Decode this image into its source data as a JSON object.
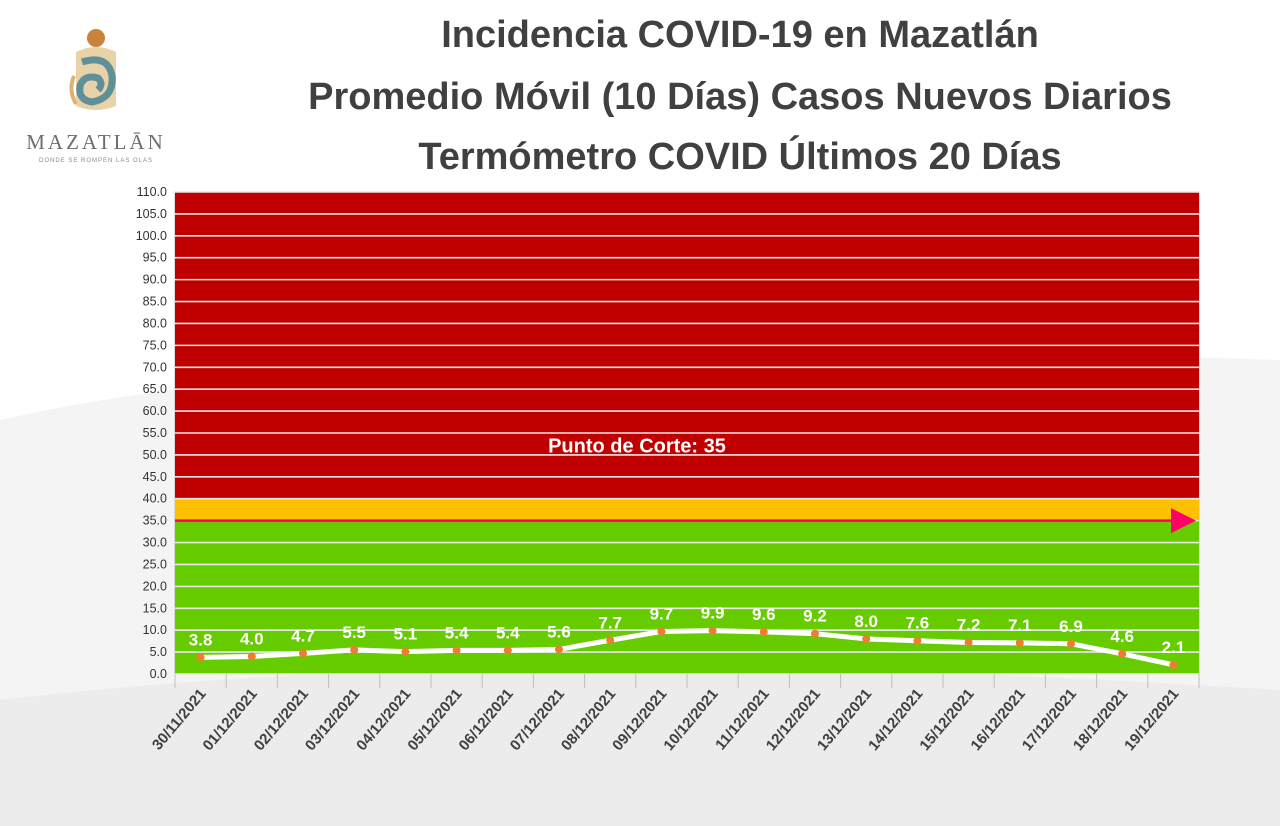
{
  "logo": {
    "icon": "mazatlan-shell-logo",
    "wordmark": "MAZATLĀN",
    "tagline": "DONDE SE ROMPEN LAS OLAS"
  },
  "header": {
    "title_line_1": "Incidencia COVID-19 en Mazatlán",
    "title_line_2": "Promedio Móvil (10 Días) Casos Nuevos Diarios",
    "title_line_3": "Termómetro COVID Últimos 20 Días"
  },
  "chart_data": {
    "type": "line",
    "title": "",
    "xlabel": "",
    "ylabel": "",
    "ylim": [
      0,
      110
    ],
    "ytick_step": 5,
    "grid": true,
    "legend": "none",
    "categories": [
      "30/11/2021",
      "01/12/2021",
      "02/12/2021",
      "03/12/2021",
      "04/12/2021",
      "05/12/2021",
      "06/12/2021",
      "07/12/2021",
      "08/12/2021",
      "09/12/2021",
      "10/12/2021",
      "11/12/2021",
      "12/12/2021",
      "13/12/2021",
      "14/12/2021",
      "15/12/2021",
      "16/12/2021",
      "17/12/2021",
      "18/12/2021",
      "19/12/2021"
    ],
    "series": [
      {
        "values": [
          3.8,
          4.0,
          4.7,
          5.5,
          5.1,
          5.4,
          5.4,
          5.6,
          7.7,
          9.7,
          9.9,
          9.6,
          9.2,
          8.0,
          7.6,
          7.2,
          7.1,
          6.9,
          4.6,
          2.1
        ]
      }
    ],
    "bands": [
      {
        "from": 0,
        "to": 35,
        "color": "#66cc00"
      },
      {
        "from": 35,
        "to": 40,
        "color": "#ffc000"
      },
      {
        "from": 40,
        "to": 110,
        "color": "#c00000"
      }
    ],
    "threshold": {
      "value": 35,
      "label": "Punto de Corte: 35",
      "color": "#ff0066"
    },
    "colors": {
      "line": "#ffffff",
      "marker": "#ed7d31",
      "data_label": "#ffffff",
      "grid": "#e8e8e8"
    }
  }
}
